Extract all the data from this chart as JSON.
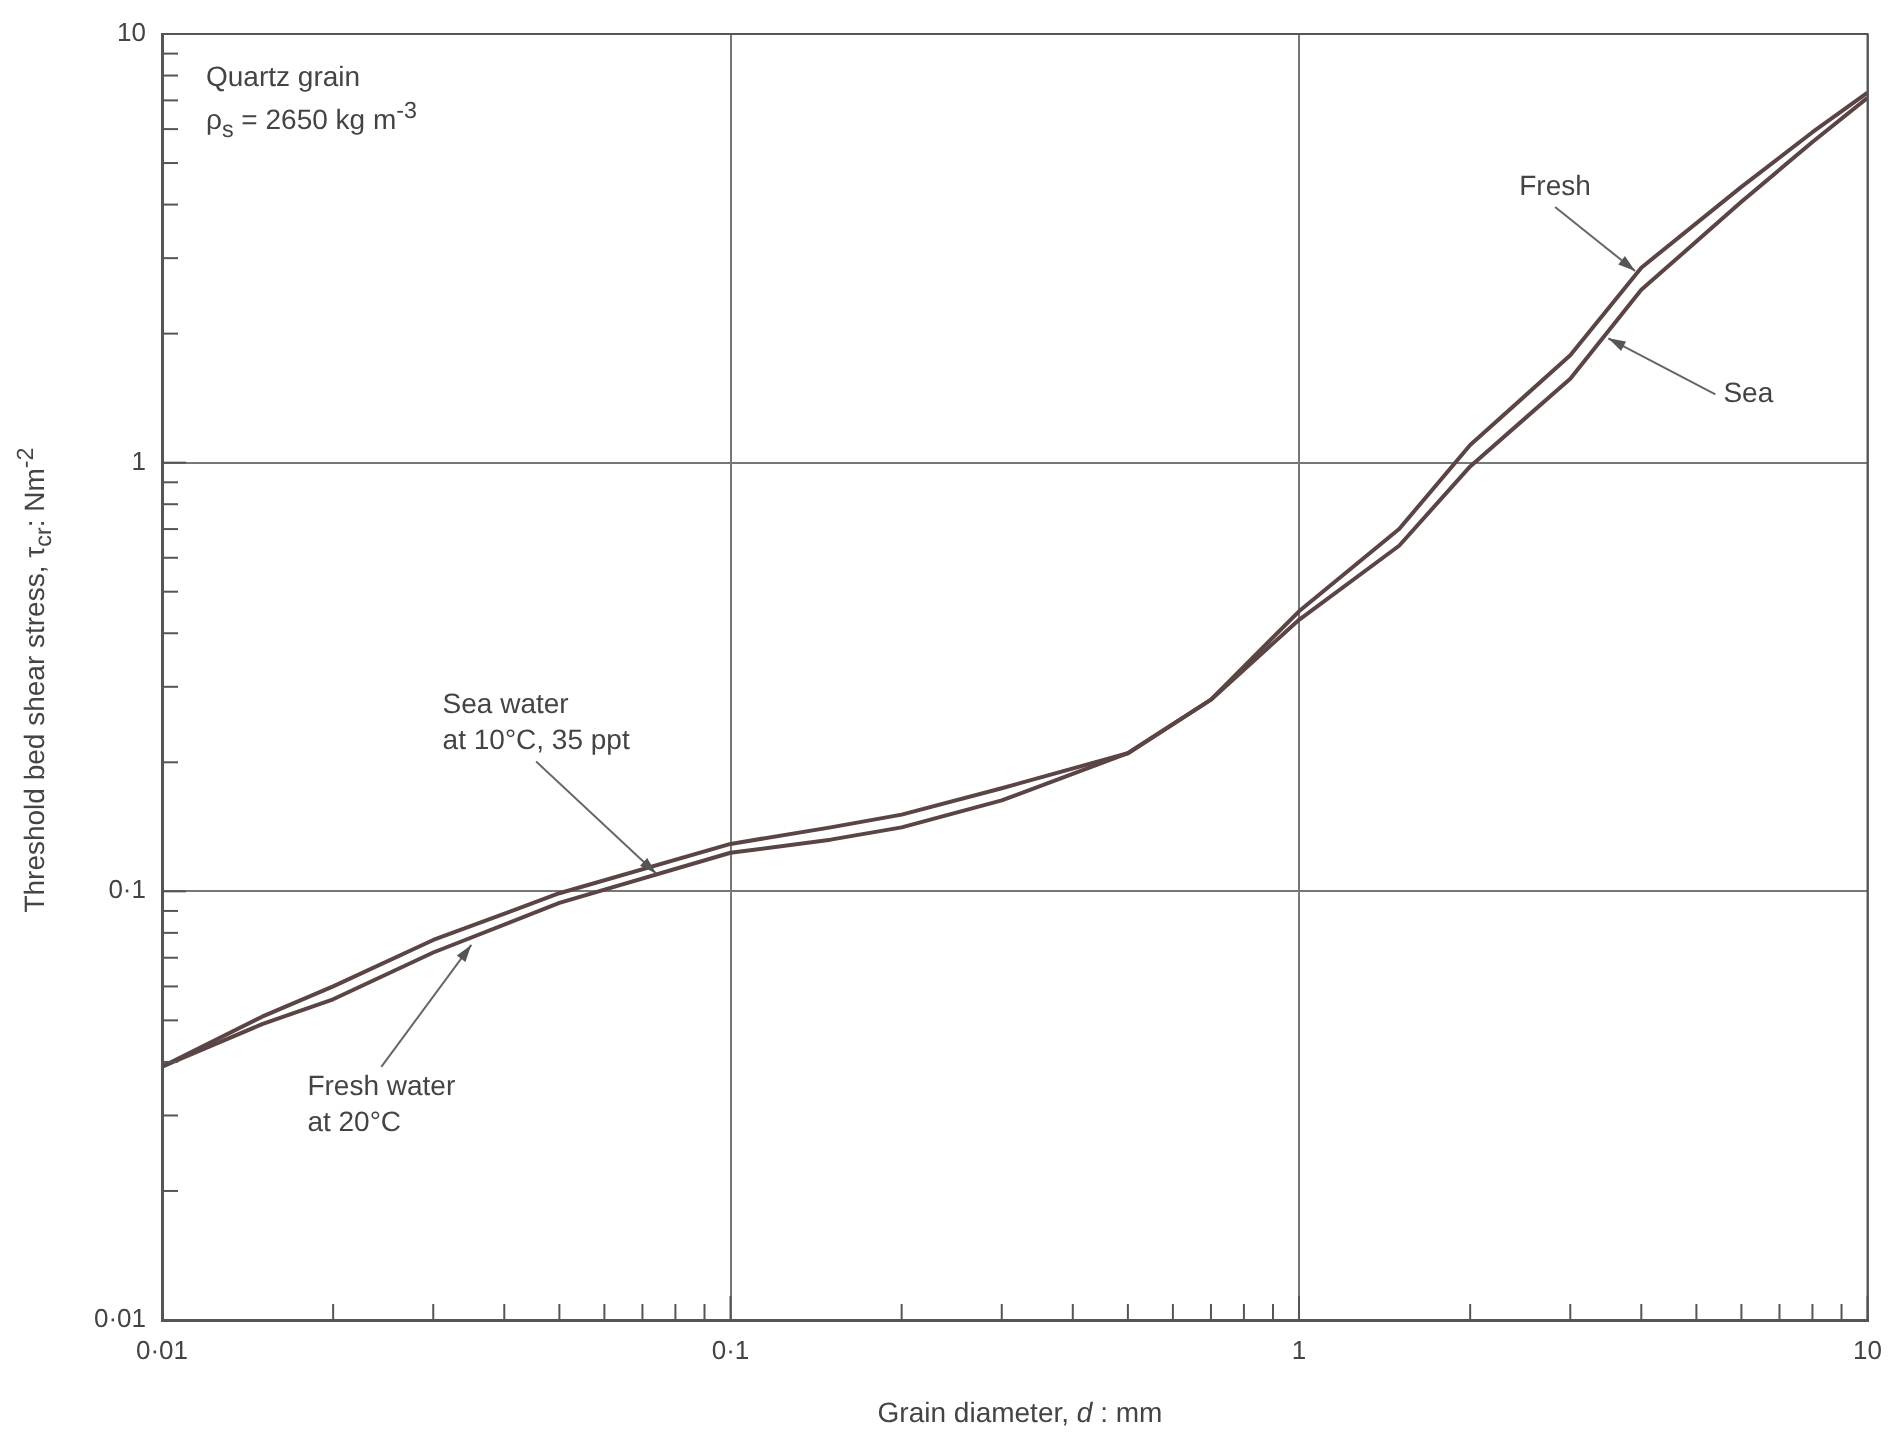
{
  "chart_data": {
    "type": "line",
    "xlabel": "Grain diameter, d : mm",
    "ylabel": "Threshold bed shear stress, τ$_{cr}$: Nm$^{-2}$",
    "log": "xy",
    "grid": true,
    "legend": false,
    "marker": "none",
    "line_style": "solid",
    "xlim": [
      0.01,
      10
    ],
    "ylim": [
      0.01,
      10
    ],
    "xticks": [
      {
        "value": 0.01,
        "label": "0·01"
      },
      {
        "value": 0.02,
        "label": null
      },
      {
        "value": 0.03,
        "label": null
      },
      {
        "value": 0.04,
        "label": null
      },
      {
        "value": 0.05,
        "label": null
      },
      {
        "value": 0.06,
        "label": null
      },
      {
        "value": 0.07,
        "label": null
      },
      {
        "value": 0.08,
        "label": null
      },
      {
        "value": 0.09,
        "label": null
      },
      {
        "value": 0.1,
        "label": "0·1"
      },
      {
        "value": 0.2,
        "label": null
      },
      {
        "value": 0.3,
        "label": null
      },
      {
        "value": 0.4,
        "label": null
      },
      {
        "value": 0.5,
        "label": null
      },
      {
        "value": 0.6,
        "label": null
      },
      {
        "value": 0.7,
        "label": null
      },
      {
        "value": 0.8,
        "label": null
      },
      {
        "value": 0.9,
        "label": null
      },
      1,
      {
        "value": 2,
        "label": null
      },
      {
        "value": 3,
        "label": null
      },
      {
        "value": 4,
        "label": null
      },
      {
        "value": 5,
        "label": null
      },
      {
        "value": 6,
        "label": null
      },
      {
        "value": 7,
        "label": null
      },
      {
        "value": 8,
        "label": null
      },
      {
        "value": 9,
        "label": null
      },
      10
    ],
    "yticks": [
      {
        "value": 0.01,
        "label": "0·01"
      },
      {
        "value": 0.02,
        "label": null
      },
      {
        "value": 0.03,
        "label": null
      },
      {
        "value": 0.04,
        "label": null
      },
      {
        "value": 0.05,
        "label": null
      },
      {
        "value": 0.06,
        "label": null
      },
      {
        "value": 0.07,
        "label": null
      },
      {
        "value": 0.08,
        "label": null
      },
      {
        "value": 0.09,
        "label": null
      },
      {
        "value": 0.1,
        "label": "0·1"
      },
      {
        "value": 0.2,
        "label": null
      },
      {
        "value": 0.3,
        "label": null
      },
      {
        "value": 0.4,
        "label": null
      },
      {
        "value": 0.5,
        "label": null
      },
      {
        "value": 0.6,
        "label": null
      },
      {
        "value": 0.7,
        "label": null
      },
      {
        "value": 0.8,
        "label": null
      },
      {
        "value": 0.9,
        "label": null
      },
      1,
      {
        "value": 2,
        "label": null
      },
      {
        "value": 3,
        "label": null
      },
      {
        "value": 4,
        "label": null
      },
      {
        "value": 5,
        "label": null
      },
      {
        "value": 6,
        "label": null
      },
      {
        "value": 7,
        "label": null
      },
      {
        "value": 8,
        "label": null
      },
      {
        "value": 9,
        "label": null
      },
      10
    ],
    "x": [
      0.01,
      0.015,
      0.02,
      0.03,
      0.05,
      0.1,
      0.15,
      0.2,
      0.3,
      0.5,
      0.7,
      1,
      1.5,
      2,
      3,
      4,
      6,
      8,
      10
    ],
    "series": [
      {
        "color": "#5a4444",
        "values": [
          0.039,
          0.051,
          0.06,
          0.077,
          0.099,
          0.129,
          0.141,
          0.151,
          0.174,
          0.21,
          0.28,
          0.43,
          0.64,
          0.98,
          1.57,
          2.53,
          4.06,
          5.6,
          7.1
        ]
      },
      {
        "color": "#5a4444",
        "values": [
          0.039,
          0.049,
          0.056,
          0.072,
          0.094,
          0.123,
          0.132,
          0.141,
          0.163,
          0.21,
          0.28,
          0.45,
          0.7,
          1.1,
          1.78,
          2.85,
          4.4,
          5.9,
          7.3
        ]
      }
    ],
    "annotations": [
      "Quartz grain\nρ$_{s}$ = 2650 kg m$^{-3}$",
      {
        "text": "Sea water\nat 10°C, 35 ppt",
        "x": 0.074,
        "y": 0.11
      },
      {
        "text": "Fresh water\nat 20°C",
        "x": 0.035,
        "y": 0.075
      },
      {
        "text": "Fresh",
        "x": 3.9,
        "y": 2.8
      },
      {
        "text": "Sea",
        "x": 3.5,
        "y": 1.95
      }
    ]
  }
}
